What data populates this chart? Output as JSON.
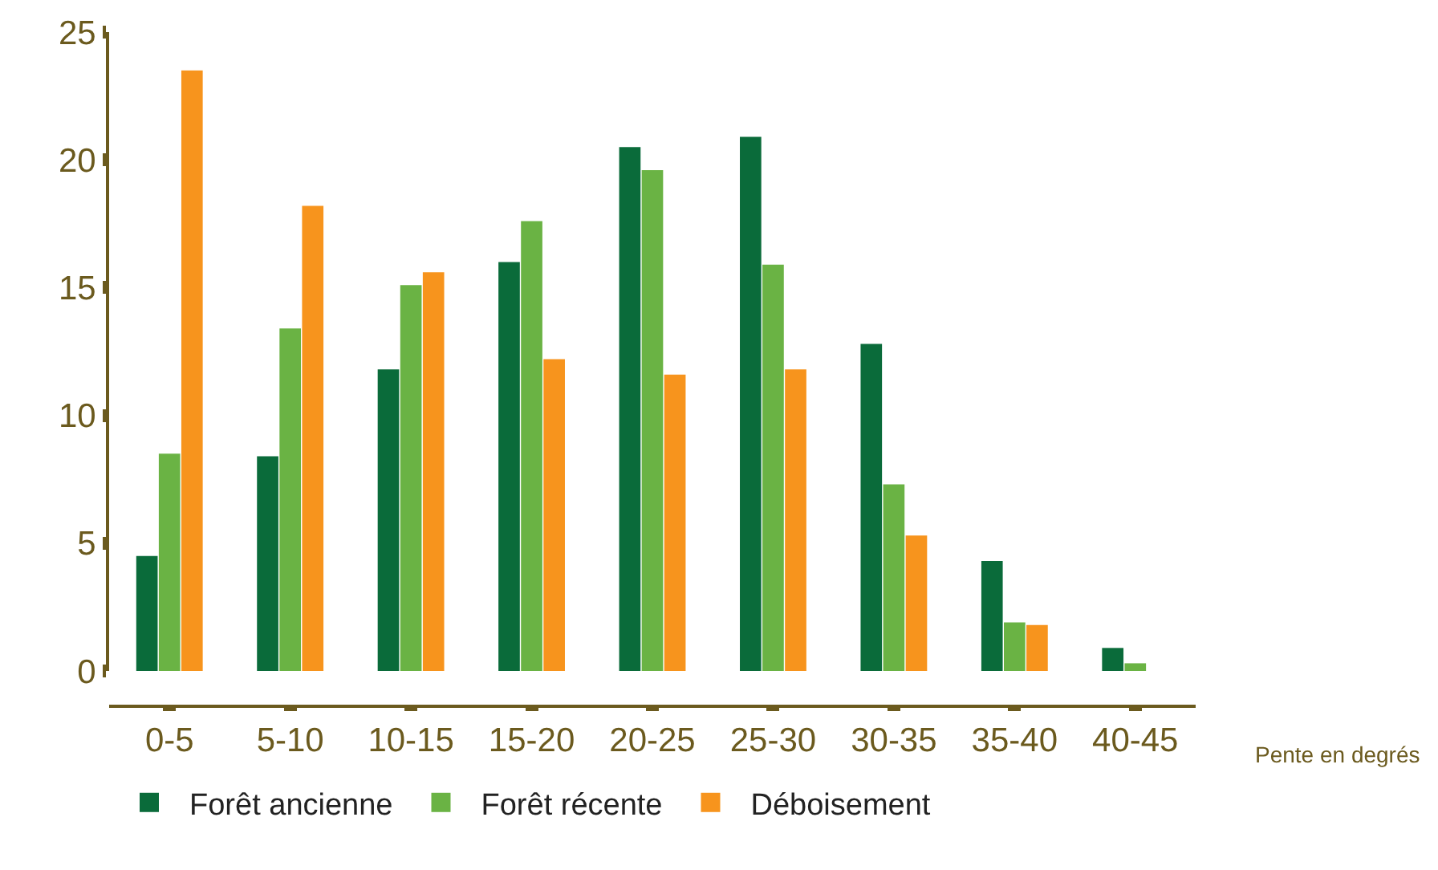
{
  "chart_data": {
    "type": "bar",
    "xlabel": "Pente en degrés",
    "categories": [
      "0-5",
      "5-10",
      "10-15",
      "15-20",
      "20-25",
      "25-30",
      "30-35",
      "35-40",
      "40-45"
    ],
    "series": [
      {
        "name": "Forêt ancienne",
        "color": "#0a6b3a",
        "values": [
          4.5,
          8.4,
          11.8,
          16.0,
          20.5,
          20.9,
          12.8,
          4.3,
          0.9
        ]
      },
      {
        "name": "Forêt récente",
        "color": "#6ab344",
        "values": [
          8.5,
          13.4,
          15.1,
          17.6,
          19.6,
          15.9,
          7.3,
          1.9,
          0.3
        ]
      },
      {
        "name": "Déboisement",
        "color": "#f7941d",
        "values": [
          23.5,
          18.2,
          15.6,
          12.2,
          11.6,
          11.8,
          5.3,
          1.8,
          null
        ]
      }
    ],
    "ylim": [
      0,
      25
    ],
    "yticks": [
      0,
      5,
      10,
      15,
      20,
      25
    ],
    "grid": false,
    "legend": "bottom"
  }
}
